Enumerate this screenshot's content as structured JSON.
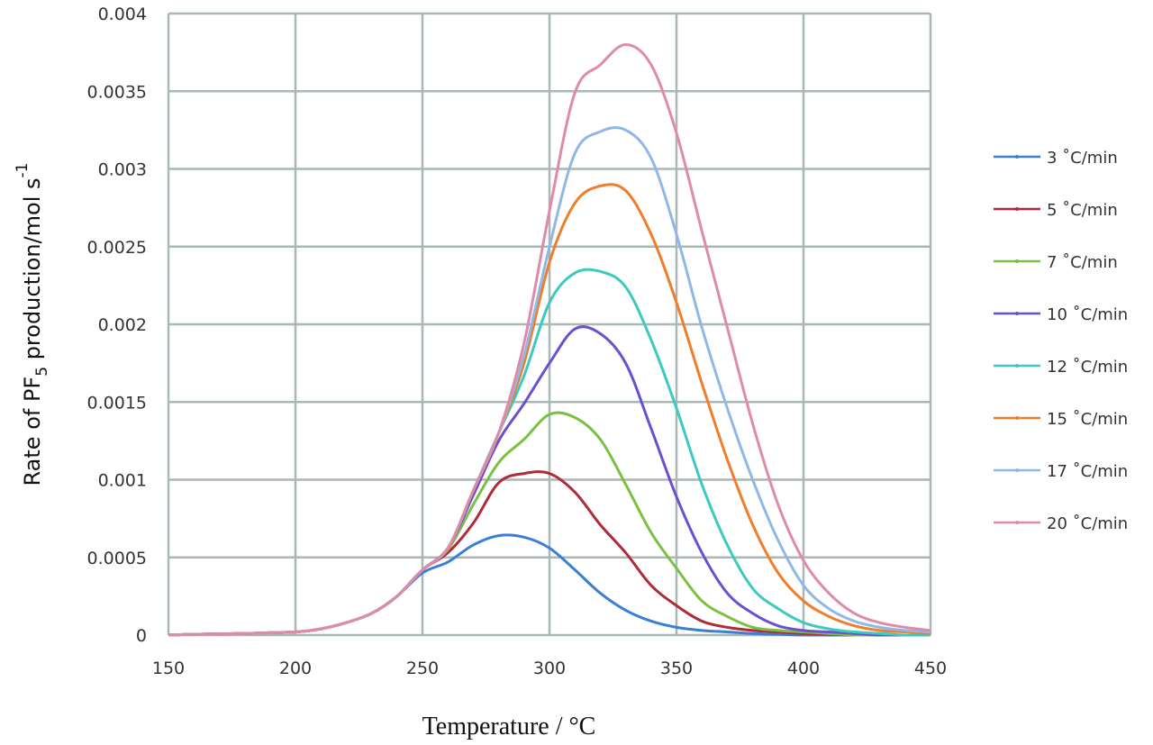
{
  "chart_data": {
    "type": "line",
    "title": "",
    "xlabel": "Temperature / °C",
    "ylabel_parts": [
      "Rate of PF",
      "5",
      " production/mol s",
      "-1"
    ],
    "xlim": [
      150,
      450
    ],
    "ylim": [
      0,
      0.004
    ],
    "xticks": [
      150,
      200,
      250,
      300,
      350,
      400,
      450
    ],
    "yticks": [
      0,
      0.0005,
      0.001,
      0.0015,
      0.002,
      0.0025,
      0.003,
      0.0035,
      0.004
    ],
    "ytick_labels": [
      "0",
      "0.0005",
      "0.001",
      "0.0015",
      "0.002",
      "0.0025",
      "0.003",
      "0.0035",
      "0.004"
    ],
    "grid": true,
    "legend_placement": "right",
    "x": [
      150,
      160,
      170,
      180,
      190,
      200,
      210,
      220,
      230,
      240,
      250,
      260,
      270,
      280,
      290,
      300,
      310,
      320,
      330,
      340,
      350,
      360,
      370,
      380,
      390,
      400,
      410,
      420,
      430,
      440,
      450
    ],
    "series": [
      {
        "name": "3 ˚C/min",
        "color": "#3a7fd5",
        "values": [
          0,
          5e-06,
          8e-06,
          1e-05,
          1.5e-05,
          2e-05,
          4e-05,
          8e-05,
          0.00014,
          0.00025,
          0.0004,
          0.00047,
          0.00058,
          0.00064,
          0.00063,
          0.00056,
          0.00042,
          0.00027,
          0.00016,
          9e-05,
          5e-05,
          3e-05,
          2e-05,
          1e-05,
          5e-06,
          0,
          0,
          0,
          0,
          0,
          0
        ]
      },
      {
        "name": "5 ˚C/min",
        "color": "#b02a3a",
        "values": [
          0,
          5e-06,
          8e-06,
          1e-05,
          1.5e-05,
          2e-05,
          4e-05,
          8e-05,
          0.00014,
          0.00025,
          0.00042,
          0.00053,
          0.00072,
          0.00098,
          0.00104,
          0.00104,
          0.00092,
          0.00071,
          0.00053,
          0.00032,
          0.00019,
          9e-05,
          5e-05,
          3e-05,
          2e-05,
          1e-05,
          5e-06,
          0,
          0,
          0,
          0
        ]
      },
      {
        "name": "7 ˚C/min",
        "color": "#7ac142",
        "values": [
          0,
          5e-06,
          8e-06,
          1e-05,
          1.5e-05,
          2e-05,
          4e-05,
          8e-05,
          0.00014,
          0.00025,
          0.00042,
          0.00055,
          0.00084,
          0.00111,
          0.00126,
          0.00142,
          0.0014,
          0.00126,
          0.00097,
          0.00066,
          0.00043,
          0.00022,
          0.00012,
          5e-05,
          3e-05,
          2e-05,
          1e-05,
          0,
          0,
          0,
          0
        ]
      },
      {
        "name": "10 ˚C/min",
        "color": "#6a4fd0",
        "values": [
          0,
          5e-06,
          8e-06,
          1e-05,
          1.5e-05,
          2e-05,
          4e-05,
          8e-05,
          0.00014,
          0.00025,
          0.00042,
          0.00056,
          0.0009,
          0.00125,
          0.00149,
          0.00175,
          0.00197,
          0.00194,
          0.00175,
          0.00133,
          0.00089,
          0.00053,
          0.00027,
          0.00014,
          6e-05,
          3e-05,
          2e-05,
          1e-05,
          0,
          0,
          0
        ]
      },
      {
        "name": "12 ˚C/min",
        "color": "#3cc9c0",
        "values": [
          0,
          5e-06,
          8e-06,
          1e-05,
          1.5e-05,
          2e-05,
          4e-05,
          8e-05,
          0.00014,
          0.00025,
          0.00042,
          0.00056,
          0.00093,
          0.0013,
          0.00167,
          0.00214,
          0.00233,
          0.00234,
          0.00224,
          0.0019,
          0.00146,
          0.00097,
          0.00058,
          0.0003,
          0.00017,
          8e-05,
          4e-05,
          2e-05,
          1e-05,
          0,
          0
        ]
      },
      {
        "name": "15 ˚C/min",
        "color": "#f07d2a",
        "values": [
          0,
          5e-06,
          8e-06,
          1e-05,
          1.5e-05,
          2e-05,
          4e-05,
          8e-05,
          0.00014,
          0.00025,
          0.00042,
          0.00056,
          0.00093,
          0.0013,
          0.00175,
          0.0024,
          0.00278,
          0.00289,
          0.00286,
          0.00258,
          0.00214,
          0.00162,
          0.00113,
          0.00071,
          0.0004,
          0.00022,
          0.00012,
          6e-05,
          3e-05,
          2e-05,
          1e-05
        ]
      },
      {
        "name": "17 ˚C/min",
        "color": "#8fb8e8",
        "values": [
          0,
          5e-06,
          8e-06,
          1e-05,
          1.5e-05,
          2e-05,
          4e-05,
          8e-05,
          0.00014,
          0.00025,
          0.00042,
          0.00056,
          0.00093,
          0.0013,
          0.0018,
          0.0025,
          0.0031,
          0.00324,
          0.00325,
          0.00307,
          0.00258,
          0.00198,
          0.00146,
          0.001,
          0.00061,
          0.00032,
          0.00017,
          9e-05,
          5e-05,
          3e-05,
          2e-05
        ]
      },
      {
        "name": "20 ˚C/min",
        "color": "#e08aaa",
        "values": [
          0,
          5e-06,
          8e-06,
          1e-05,
          1.5e-05,
          2e-05,
          4e-05,
          8e-05,
          0.00014,
          0.00025,
          0.00042,
          0.00056,
          0.00093,
          0.0013,
          0.00188,
          0.00273,
          0.00349,
          0.00367,
          0.0038,
          0.00367,
          0.00323,
          0.0026,
          0.00198,
          0.00136,
          0.00084,
          0.00048,
          0.00027,
          0.00014,
          8e-05,
          5e-05,
          3e-05
        ]
      }
    ]
  }
}
